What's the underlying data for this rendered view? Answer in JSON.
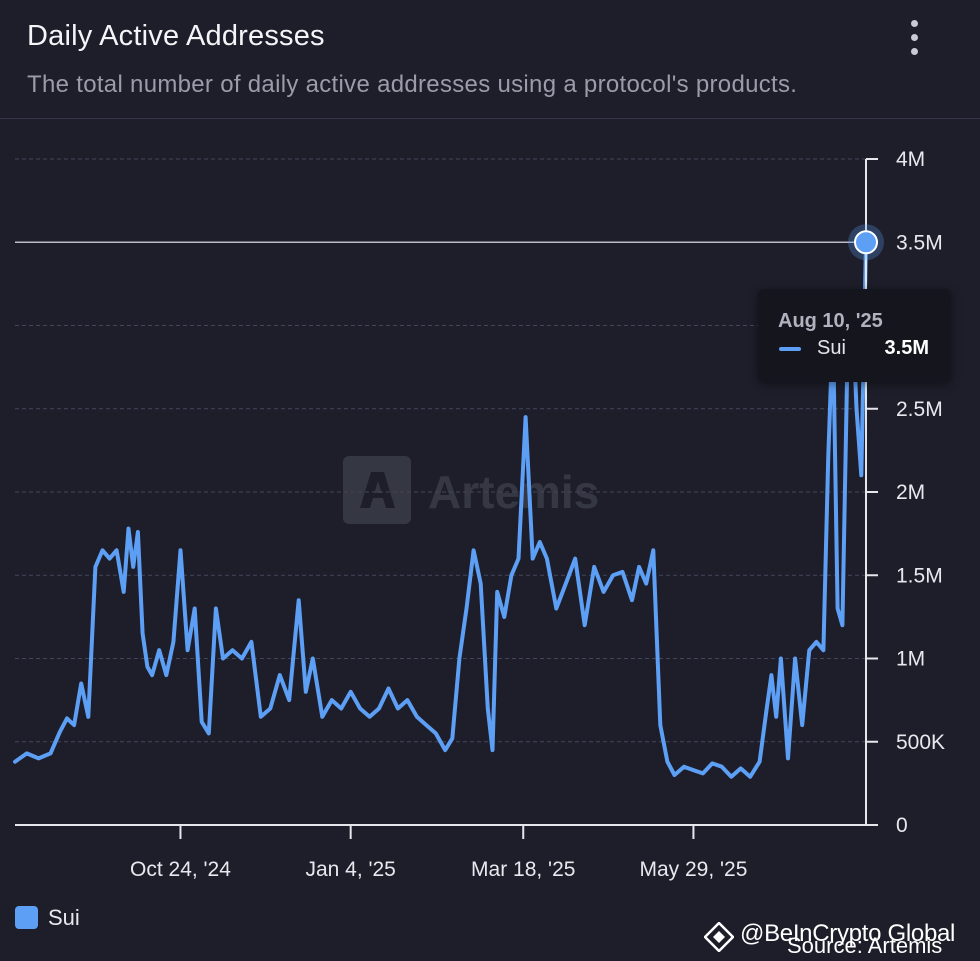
{
  "header": {
    "title": "Daily Active Addresses",
    "subtitle": "The total number of daily active addresses using a protocol's products.",
    "menu_icon": "kebab-menu-icon"
  },
  "chart_data": {
    "type": "line",
    "title": "Daily Active Addresses",
    "xlabel": "",
    "ylabel": "",
    "ylim": [
      0,
      4000000
    ],
    "grid": true,
    "x_range": [
      "2024-08-15",
      "2025-08-10"
    ],
    "x_ticks": [
      {
        "date": "2024-10-24",
        "label": "Oct 24, '24"
      },
      {
        "date": "2025-01-04",
        "label": "Jan 4, '25"
      },
      {
        "date": "2025-03-18",
        "label": "Mar 18, '25"
      },
      {
        "date": "2025-05-29",
        "label": "May 29, '25"
      }
    ],
    "y_ticks": [
      {
        "value": 0,
        "label": "0"
      },
      {
        "value": 500000,
        "label": "500K"
      },
      {
        "value": 1000000,
        "label": "1M"
      },
      {
        "value": 1500000,
        "label": "1.5M"
      },
      {
        "value": 2000000,
        "label": "2M"
      },
      {
        "value": 2500000,
        "label": "2.5M"
      },
      {
        "value": 3500000,
        "label": "3.5M"
      },
      {
        "value": 4000000,
        "label": "4M"
      }
    ],
    "series": [
      {
        "name": "Sui",
        "color": "#5d9ff5",
        "points": [
          [
            "2024-08-15",
            380000
          ],
          [
            "2024-08-20",
            430000
          ],
          [
            "2024-08-25",
            400000
          ],
          [
            "2024-08-30",
            430000
          ],
          [
            "2024-09-03",
            560000
          ],
          [
            "2024-09-06",
            640000
          ],
          [
            "2024-09-09",
            600000
          ],
          [
            "2024-09-12",
            850000
          ],
          [
            "2024-09-15",
            650000
          ],
          [
            "2024-09-18",
            1550000
          ],
          [
            "2024-09-21",
            1650000
          ],
          [
            "2024-09-24",
            1600000
          ],
          [
            "2024-09-27",
            1650000
          ],
          [
            "2024-09-30",
            1400000
          ],
          [
            "2024-10-02",
            1780000
          ],
          [
            "2024-10-04",
            1550000
          ],
          [
            "2024-10-06",
            1760000
          ],
          [
            "2024-10-08",
            1150000
          ],
          [
            "2024-10-10",
            950000
          ],
          [
            "2024-10-12",
            900000
          ],
          [
            "2024-10-15",
            1050000
          ],
          [
            "2024-10-18",
            900000
          ],
          [
            "2024-10-21",
            1100000
          ],
          [
            "2024-10-24",
            1650000
          ],
          [
            "2024-10-27",
            1050000
          ],
          [
            "2024-10-30",
            1300000
          ],
          [
            "2024-11-02",
            620000
          ],
          [
            "2024-11-05",
            550000
          ],
          [
            "2024-11-08",
            1300000
          ],
          [
            "2024-11-11",
            1000000
          ],
          [
            "2024-11-15",
            1050000
          ],
          [
            "2024-11-19",
            1000000
          ],
          [
            "2024-11-23",
            1100000
          ],
          [
            "2024-11-27",
            650000
          ],
          [
            "2024-12-01",
            700000
          ],
          [
            "2024-12-05",
            900000
          ],
          [
            "2024-12-09",
            750000
          ],
          [
            "2024-12-13",
            1350000
          ],
          [
            "2024-12-16",
            800000
          ],
          [
            "2024-12-19",
            1000000
          ],
          [
            "2024-12-23",
            650000
          ],
          [
            "2024-12-27",
            750000
          ],
          [
            "2024-12-31",
            700000
          ],
          [
            "2025-01-04",
            800000
          ],
          [
            "2025-01-08",
            700000
          ],
          [
            "2025-01-12",
            650000
          ],
          [
            "2025-01-16",
            700000
          ],
          [
            "2025-01-20",
            820000
          ],
          [
            "2025-01-24",
            700000
          ],
          [
            "2025-01-28",
            750000
          ],
          [
            "2025-02-01",
            650000
          ],
          [
            "2025-02-05",
            600000
          ],
          [
            "2025-02-09",
            550000
          ],
          [
            "2025-02-13",
            450000
          ],
          [
            "2025-02-16",
            520000
          ],
          [
            "2025-02-19",
            1000000
          ],
          [
            "2025-02-22",
            1300000
          ],
          [
            "2025-02-25",
            1650000
          ],
          [
            "2025-02-28",
            1450000
          ],
          [
            "2025-03-03",
            700000
          ],
          [
            "2025-03-05",
            450000
          ],
          [
            "2025-03-07",
            1400000
          ],
          [
            "2025-03-10",
            1250000
          ],
          [
            "2025-03-13",
            1500000
          ],
          [
            "2025-03-16",
            1600000
          ],
          [
            "2025-03-19",
            2450000
          ],
          [
            "2025-03-22",
            1600000
          ],
          [
            "2025-03-25",
            1700000
          ],
          [
            "2025-03-28",
            1600000
          ],
          [
            "2025-04-01",
            1300000
          ],
          [
            "2025-04-05",
            1450000
          ],
          [
            "2025-04-09",
            1600000
          ],
          [
            "2025-04-13",
            1200000
          ],
          [
            "2025-04-17",
            1550000
          ],
          [
            "2025-04-21",
            1400000
          ],
          [
            "2025-04-25",
            1500000
          ],
          [
            "2025-04-29",
            1520000
          ],
          [
            "2025-05-03",
            1350000
          ],
          [
            "2025-05-06",
            1550000
          ],
          [
            "2025-05-09",
            1450000
          ],
          [
            "2025-05-12",
            1650000
          ],
          [
            "2025-05-15",
            600000
          ],
          [
            "2025-05-18",
            380000
          ],
          [
            "2025-05-21",
            300000
          ],
          [
            "2025-05-25",
            350000
          ],
          [
            "2025-05-29",
            330000
          ],
          [
            "2025-06-02",
            310000
          ],
          [
            "2025-06-06",
            370000
          ],
          [
            "2025-06-10",
            350000
          ],
          [
            "2025-06-14",
            290000
          ],
          [
            "2025-06-18",
            340000
          ],
          [
            "2025-06-22",
            290000
          ],
          [
            "2025-06-26",
            380000
          ],
          [
            "2025-06-29",
            700000
          ],
          [
            "2025-07-01",
            900000
          ],
          [
            "2025-07-03",
            650000
          ],
          [
            "2025-07-05",
            1000000
          ],
          [
            "2025-07-08",
            400000
          ],
          [
            "2025-07-11",
            1000000
          ],
          [
            "2025-07-14",
            600000
          ],
          [
            "2025-07-17",
            1050000
          ],
          [
            "2025-07-20",
            1100000
          ],
          [
            "2025-07-23",
            1050000
          ],
          [
            "2025-07-25",
            2200000
          ],
          [
            "2025-07-27",
            3000000
          ],
          [
            "2025-07-29",
            1300000
          ],
          [
            "2025-07-31",
            1200000
          ],
          [
            "2025-08-02",
            2700000
          ],
          [
            "2025-08-04",
            3200000
          ],
          [
            "2025-08-06",
            2500000
          ],
          [
            "2025-08-08",
            2100000
          ],
          [
            "2025-08-10",
            3500000
          ]
        ]
      }
    ],
    "tooltip": {
      "date": "Aug 10, '25",
      "series": "Sui",
      "value": "3.5M",
      "value_num": 3500000
    }
  },
  "tooltip": {
    "date": "Aug 10, '25",
    "series": "Sui",
    "value": "3.5M"
  },
  "watermark_logo": "Artemis",
  "legend": {
    "label": "Sui",
    "color": "#5d9ff5"
  },
  "credit": {
    "watermark": "@BeInCrypto Global",
    "source": "Source: Artemis"
  }
}
